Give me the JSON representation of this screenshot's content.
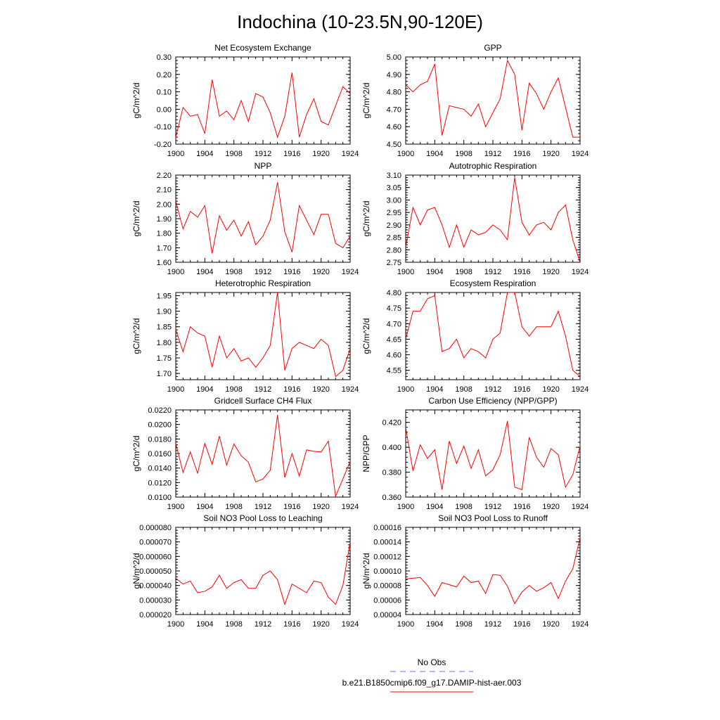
{
  "title": "Indochina (10-23.5N,90-120E)",
  "colors": {
    "series": "#ff0000",
    "obs": "#6a6aff",
    "axis": "#000000"
  },
  "legend": {
    "obs_label": "No Obs",
    "model_label": "b.e21.B1850cmip6.f09_g17.DAMIP-hist-aer.003"
  },
  "chart_data": [
    {
      "type": "line",
      "title": "Net Ecosystem Exchange",
      "ylabel": "gC/m^2/d",
      "xlim": [
        1900,
        1924
      ],
      "ylim": [
        -0.2,
        0.3
      ],
      "x_ticks": [
        "1900",
        "1904",
        "1908",
        "1912",
        "1916",
        "1920",
        "1924"
      ],
      "y_ticks": [
        "-0.20",
        "-0.10",
        "0.00",
        "0.10",
        "0.20",
        "0.30"
      ],
      "x": [
        1900,
        1901,
        1902,
        1903,
        1904,
        1905,
        1906,
        1907,
        1908,
        1909,
        1910,
        1911,
        1912,
        1913,
        1914,
        1915,
        1916,
        1917,
        1918,
        1919,
        1920,
        1921,
        1922,
        1923,
        1924
      ],
      "series": [
        {
          "values": [
            -0.16,
            0.01,
            -0.04,
            -0.03,
            -0.14,
            0.17,
            -0.04,
            -0.01,
            -0.06,
            0.05,
            -0.07,
            0.09,
            0.07,
            -0.02,
            -0.16,
            -0.04,
            0.21,
            -0.16,
            -0.03,
            0.06,
            -0.07,
            -0.09,
            0.02,
            0.13,
            0.09
          ]
        }
      ]
    },
    {
      "type": "line",
      "title": "GPP",
      "ylabel": "gC/m^2/d",
      "xlim": [
        1900,
        1924
      ],
      "ylim": [
        4.5,
        5.0
      ],
      "x_ticks": [
        "1900",
        "1904",
        "1908",
        "1912",
        "1916",
        "1920",
        "1924"
      ],
      "y_ticks": [
        "4.50",
        "4.60",
        "4.70",
        "4.80",
        "4.90",
        "5.00"
      ],
      "x": [
        1900,
        1901,
        1902,
        1903,
        1904,
        1905,
        1906,
        1907,
        1908,
        1909,
        1910,
        1911,
        1912,
        1913,
        1914,
        1915,
        1916,
        1917,
        1918,
        1919,
        1920,
        1921,
        1922,
        1923,
        1924
      ],
      "series": [
        {
          "values": [
            4.84,
            4.8,
            4.84,
            4.86,
            4.96,
            4.55,
            4.72,
            4.71,
            4.7,
            4.66,
            4.73,
            4.6,
            4.68,
            4.76,
            4.98,
            4.9,
            4.58,
            4.85,
            4.79,
            4.7,
            4.8,
            4.88,
            4.71,
            4.54,
            4.54
          ]
        }
      ]
    },
    {
      "type": "line",
      "title": "NPP",
      "ylabel": "gC/m^2/d",
      "xlim": [
        1900,
        1924
      ],
      "ylim": [
        1.6,
        2.2
      ],
      "x_ticks": [
        "1900",
        "1904",
        "1908",
        "1912",
        "1916",
        "1920",
        "1924"
      ],
      "y_ticks": [
        "1.60",
        "1.70",
        "1.80",
        "1.90",
        "2.00",
        "2.10",
        "2.20"
      ],
      "x": [
        1900,
        1901,
        1902,
        1903,
        1904,
        1905,
        1906,
        1907,
        1908,
        1909,
        1910,
        1911,
        1912,
        1913,
        1914,
        1915,
        1916,
        1917,
        1918,
        1919,
        1920,
        1921,
        1922,
        1923,
        1924
      ],
      "series": [
        {
          "values": [
            2.02,
            1.83,
            1.95,
            1.91,
            1.99,
            1.66,
            1.92,
            1.82,
            1.89,
            1.78,
            1.88,
            1.72,
            1.78,
            1.89,
            2.15,
            1.81,
            1.67,
            1.99,
            1.89,
            1.79,
            1.93,
            1.93,
            1.73,
            1.7,
            1.78
          ]
        }
      ]
    },
    {
      "type": "line",
      "title": "Autotrophic Respiration",
      "ylabel": "gC/m^2/d",
      "xlim": [
        1900,
        1924
      ],
      "ylim": [
        2.75,
        3.1
      ],
      "x_ticks": [
        "1900",
        "1904",
        "1908",
        "1912",
        "1916",
        "1920",
        "1924"
      ],
      "y_ticks": [
        "2.75",
        "2.80",
        "2.85",
        "2.90",
        "2.95",
        "3.00",
        "3.05",
        "3.10"
      ],
      "x": [
        1900,
        1901,
        1902,
        1903,
        1904,
        1905,
        1906,
        1907,
        1908,
        1909,
        1910,
        1911,
        1912,
        1913,
        1914,
        1915,
        1916,
        1917,
        1918,
        1919,
        1920,
        1921,
        1922,
        1923,
        1924
      ],
      "series": [
        {
          "values": [
            2.81,
            2.97,
            2.9,
            2.96,
            2.97,
            2.9,
            2.81,
            2.9,
            2.81,
            2.88,
            2.86,
            2.87,
            2.9,
            2.88,
            2.84,
            3.09,
            2.91,
            2.86,
            2.9,
            2.91,
            2.88,
            2.95,
            2.98,
            2.84,
            2.75
          ]
        }
      ]
    },
    {
      "type": "line",
      "title": "Heterotrophic Respiration",
      "ylabel": "gC/m^2/d",
      "xlim": [
        1900,
        1924
      ],
      "ylim": [
        1.68,
        1.96
      ],
      "x_ticks": [
        "1900",
        "1904",
        "1908",
        "1912",
        "1916",
        "1920",
        "1924"
      ],
      "y_ticks": [
        "1.70",
        "1.75",
        "1.80",
        "1.85",
        "1.90",
        "1.95"
      ],
      "x": [
        1900,
        1901,
        1902,
        1903,
        1904,
        1905,
        1906,
        1907,
        1908,
        1909,
        1910,
        1911,
        1912,
        1913,
        1914,
        1915,
        1916,
        1917,
        1918,
        1919,
        1920,
        1921,
        1922,
        1923,
        1924
      ],
      "series": [
        {
          "values": [
            1.84,
            1.77,
            1.85,
            1.83,
            1.82,
            1.72,
            1.82,
            1.75,
            1.78,
            1.74,
            1.75,
            1.72,
            1.75,
            1.79,
            1.96,
            1.71,
            1.78,
            1.8,
            1.79,
            1.78,
            1.81,
            1.79,
            1.69,
            1.71,
            1.78
          ]
        }
      ]
    },
    {
      "type": "line",
      "title": "Ecosystem Respiration",
      "ylabel": "gC/m^2/d",
      "xlim": [
        1900,
        1924
      ],
      "ylim": [
        4.52,
        4.8
      ],
      "x_ticks": [
        "1900",
        "1904",
        "1908",
        "1912",
        "1916",
        "1920",
        "1924"
      ],
      "y_ticks": [
        "4.55",
        "4.60",
        "4.65",
        "4.70",
        "4.75",
        "4.80"
      ],
      "x": [
        1900,
        1901,
        1902,
        1903,
        1904,
        1905,
        1906,
        1907,
        1908,
        1909,
        1910,
        1911,
        1912,
        1913,
        1914,
        1915,
        1916,
        1917,
        1918,
        1919,
        1920,
        1921,
        1922,
        1923,
        1924
      ],
      "series": [
        {
          "values": [
            4.65,
            4.74,
            4.74,
            4.78,
            4.79,
            4.61,
            4.62,
            4.65,
            4.59,
            4.62,
            4.61,
            4.59,
            4.65,
            4.67,
            4.8,
            4.8,
            4.69,
            4.66,
            4.69,
            4.69,
            4.69,
            4.74,
            4.66,
            4.55,
            4.53
          ]
        }
      ]
    },
    {
      "type": "line",
      "title": "Gridcell Surface CH4 Flux",
      "ylabel": "gC/m^2/d",
      "xlim": [
        1900,
        1924
      ],
      "ylim": [
        0.01,
        0.022
      ],
      "x_ticks": [
        "1900",
        "1904",
        "1908",
        "1912",
        "1916",
        "1920",
        "1924"
      ],
      "y_ticks": [
        "0.0100",
        "0.0120",
        "0.0140",
        "0.0160",
        "0.0180",
        "0.0200",
        "0.0220"
      ],
      "x": [
        1900,
        1901,
        1902,
        1903,
        1904,
        1905,
        1906,
        1907,
        1908,
        1909,
        1910,
        1911,
        1912,
        1913,
        1914,
        1915,
        1916,
        1917,
        1918,
        1919,
        1920,
        1921,
        1922,
        1923,
        1924
      ],
      "series": [
        {
          "values": [
            0.0174,
            0.0134,
            0.0162,
            0.0133,
            0.0174,
            0.0145,
            0.0184,
            0.0144,
            0.0173,
            0.0157,
            0.0148,
            0.0121,
            0.0125,
            0.0137,
            0.0213,
            0.0127,
            0.016,
            0.0129,
            0.0165,
            0.0163,
            0.0162,
            0.0177,
            0.0101,
            0.0125,
            0.0149
          ]
        }
      ]
    },
    {
      "type": "line",
      "title": "Carbon Use Efficiency (NPP/GPP)",
      "ylabel": "NPP/GPP",
      "xlim": [
        1900,
        1924
      ],
      "ylim": [
        0.36,
        0.43
      ],
      "x_ticks": [
        "1900",
        "1904",
        "1908",
        "1912",
        "1916",
        "1920",
        "1924"
      ],
      "y_ticks": [
        "0.360",
        "0.380",
        "0.400",
        "0.420"
      ],
      "x": [
        1900,
        1901,
        1902,
        1903,
        1904,
        1905,
        1906,
        1907,
        1908,
        1909,
        1910,
        1911,
        1912,
        1913,
        1914,
        1915,
        1916,
        1917,
        1918,
        1919,
        1920,
        1921,
        1922,
        1923,
        1924
      ],
      "series": [
        {
          "values": [
            0.416,
            0.381,
            0.402,
            0.391,
            0.398,
            0.366,
            0.405,
            0.387,
            0.401,
            0.383,
            0.398,
            0.377,
            0.382,
            0.394,
            0.421,
            0.368,
            0.366,
            0.408,
            0.392,
            0.384,
            0.399,
            0.394,
            0.368,
            0.378,
            0.401
          ]
        }
      ]
    },
    {
      "type": "line",
      "title": "Soil NO3 Pool Loss to Leaching",
      "ylabel": "gN/m^2/d",
      "xlim": [
        1900,
        1924
      ],
      "ylim": [
        2e-05,
        8e-05
      ],
      "x_ticks": [
        "1900",
        "1904",
        "1908",
        "1912",
        "1916",
        "1920",
        "1924"
      ],
      "y_ticks": [
        "0.000020",
        "0.000030",
        "0.000040",
        "0.000050",
        "0.000060",
        "0.000070",
        "0.000080"
      ],
      "x": [
        1900,
        1901,
        1902,
        1903,
        1904,
        1905,
        1906,
        1907,
        1908,
        1909,
        1910,
        1911,
        1912,
        1913,
        1914,
        1915,
        1916,
        1917,
        1918,
        1919,
        1920,
        1921,
        1922,
        1923,
        1924
      ],
      "series": [
        {
          "values": [
            4.5e-05,
            4.1e-05,
            4.3e-05,
            3.5e-05,
            3.6e-05,
            3.9e-05,
            4.7e-05,
            3.8e-05,
            4.2e-05,
            4.4e-05,
            3.8e-05,
            3.8e-05,
            4.7e-05,
            5e-05,
            4.4e-05,
            2.7e-05,
            4.1e-05,
            3.8e-05,
            3.5e-05,
            4.3e-05,
            4.2e-05,
            3.2e-05,
            2.7e-05,
            4e-05,
            7e-05
          ]
        }
      ]
    },
    {
      "type": "line",
      "title": "Soil NO3 Pool Loss to Runoff",
      "ylabel": "gN/m^2/d",
      "xlim": [
        1900,
        1924
      ],
      "ylim": [
        4e-05,
        0.00016
      ],
      "x_ticks": [
        "1900",
        "1904",
        "1908",
        "1912",
        "1916",
        "1920",
        "1924"
      ],
      "y_ticks": [
        "0.00004",
        "0.00006",
        "0.00008",
        "0.00010",
        "0.00012",
        "0.00014",
        "0.00016"
      ],
      "x": [
        1900,
        1901,
        1902,
        1903,
        1904,
        1905,
        1906,
        1907,
        1908,
        1909,
        1910,
        1911,
        1912,
        1913,
        1914,
        1915,
        1916,
        1917,
        1918,
        1919,
        1920,
        1921,
        1922,
        1923,
        1924
      ],
      "series": [
        {
          "values": [
            8.9e-05,
            9e-05,
            9.1e-05,
            8e-05,
            6.5e-05,
            8.4e-05,
            8.1e-05,
            7.8e-05,
            9.3e-05,
            8.4e-05,
            8.6e-05,
            6.9e-05,
            9.5e-05,
            9.4e-05,
            7.9e-05,
            5.5e-05,
            7.1e-05,
            8e-05,
            7.2e-05,
            7.7e-05,
            8.4e-05,
            6.2e-05,
            8.6e-05,
            0.000103,
            0.000146
          ]
        }
      ]
    }
  ]
}
